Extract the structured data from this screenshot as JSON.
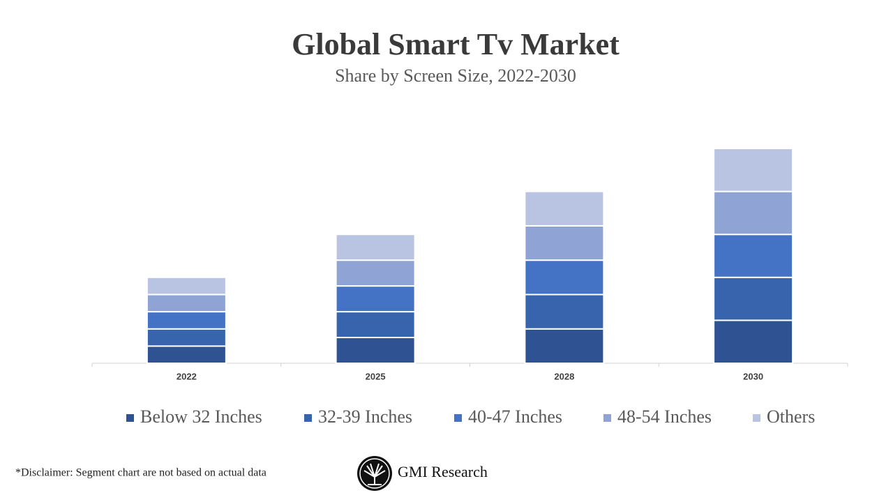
{
  "chart_data": {
    "type": "stacked-bar",
    "title": "Global Smart Tv Market",
    "subtitle": "Share by Screen Size, 2022-2030",
    "categories": [
      "2022",
      "2025",
      "2028",
      "2030"
    ],
    "series": [
      {
        "name": "Below 32 Inches",
        "color": "#2f5392",
        "values": [
          2,
          3,
          4,
          5
        ]
      },
      {
        "name": "32-39 Inches",
        "color": "#3864ae",
        "values": [
          2,
          3,
          4,
          5
        ]
      },
      {
        "name": "40-47 Inches",
        "color": "#4472c4",
        "values": [
          2,
          3,
          4,
          5
        ]
      },
      {
        "name": "48-54 Inches",
        "color": "#8fa4d5",
        "values": [
          2,
          3,
          4,
          5
        ]
      },
      {
        "name": "Others",
        "color": "#b9c4e3",
        "values": [
          2,
          3,
          4,
          5
        ]
      }
    ],
    "ylim": [
      0,
      25
    ],
    "legend": "bottom"
  },
  "footer": {
    "disclaimer": "*Disclaimer:   Segment chart are not based on actual data",
    "brand": "GMI Research"
  }
}
